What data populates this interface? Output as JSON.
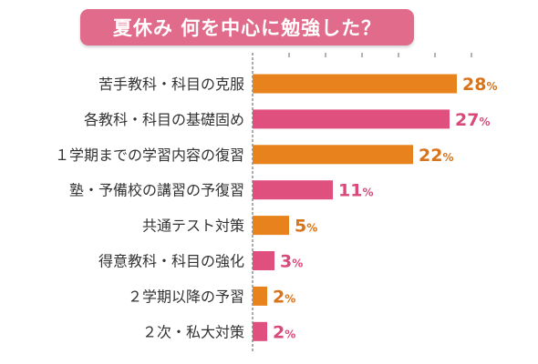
{
  "chart_data": {
    "type": "bar",
    "orientation": "horizontal",
    "title": "夏休み 何を中心に勉強した？",
    "categories": [
      "苦手教科・科目の克服",
      "各教科・科目の基礎固め",
      "１学期までの学習内容の復習",
      "塾・予備校の講習の予復習",
      "共通テスト対策",
      "得意教科・科目の強化",
      "２学期以降の予習",
      "２次・私大対策"
    ],
    "values": [
      28,
      27,
      22,
      11,
      5,
      3,
      2,
      2
    ],
    "value_labels": [
      "28",
      "27",
      "22",
      "11",
      "5",
      "3",
      "2",
      "2"
    ],
    "unit": "%",
    "bar_colors": [
      "#e8821d",
      "#e0507e",
      "#e8821d",
      "#e0507e",
      "#e8821d",
      "#e0507e",
      "#e8821d",
      "#e0507e"
    ],
    "label_colors": [
      "#d9731a",
      "#d94a78",
      "#d9731a",
      "#d94a78",
      "#d9731a",
      "#d94a78",
      "#d9731a",
      "#d94a78"
    ],
    "title_box_color": "#e06b8a",
    "xlim": [
      0,
      30
    ],
    "grid": false
  }
}
